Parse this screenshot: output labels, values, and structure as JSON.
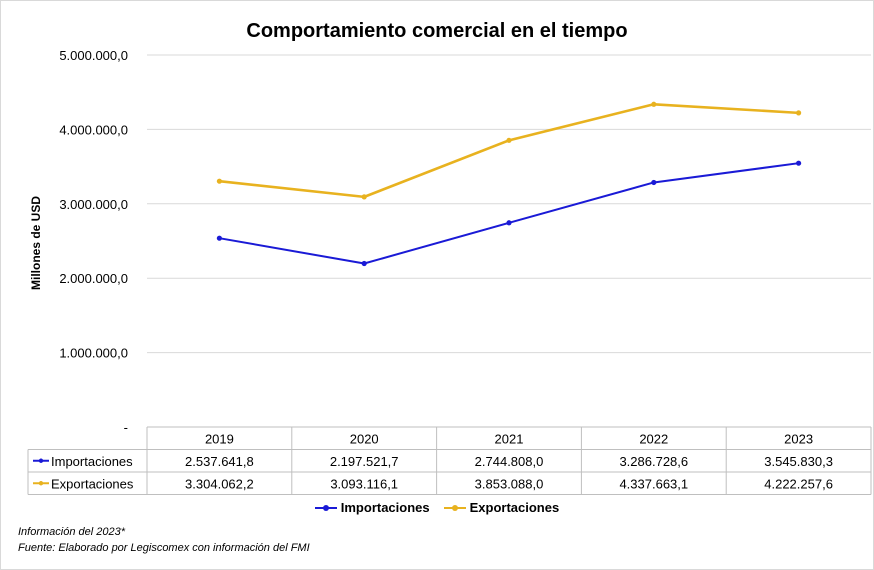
{
  "chart_data": {
    "type": "line",
    "title": "Comportamiento comercial en el tiempo",
    "ylabel": "Millones de USD",
    "xlabel": "",
    "ylim": [
      0,
      5000000
    ],
    "y_ticks": [
      "-",
      "1.000.000,0",
      "2.000.000,0",
      "3.000.000,0",
      "4.000.000,0",
      "5.000.000,0"
    ],
    "grid": true,
    "legend_position": "bottom",
    "categories": [
      "2019",
      "2020",
      "2021",
      "2022",
      "2023"
    ],
    "series": [
      {
        "name": "Importaciones",
        "color": "#1a1ad6",
        "values": [
          2537641.8,
          2197521.7,
          2744808.0,
          3286728.6,
          3545830.3
        ],
        "labels": [
          "2.537.641,8",
          "2.197.521,7",
          "2.744.808,0",
          "3.286.728,6",
          "3.545.830,3"
        ]
      },
      {
        "name": "Exportaciones",
        "color": "#e8b21f",
        "values": [
          3304062.2,
          3093116.1,
          3853088.0,
          4337663.1,
          4222257.6
        ],
        "labels": [
          "3.304.062,2",
          "3.093.116,1",
          "3.853.088,0",
          "4.337.663,1",
          "4.222.257,6"
        ]
      }
    ]
  },
  "footnotes": {
    "line1": "Información del 2023*",
    "line2": "Fuente: Elaborado por Legiscomex con información del FMI"
  }
}
